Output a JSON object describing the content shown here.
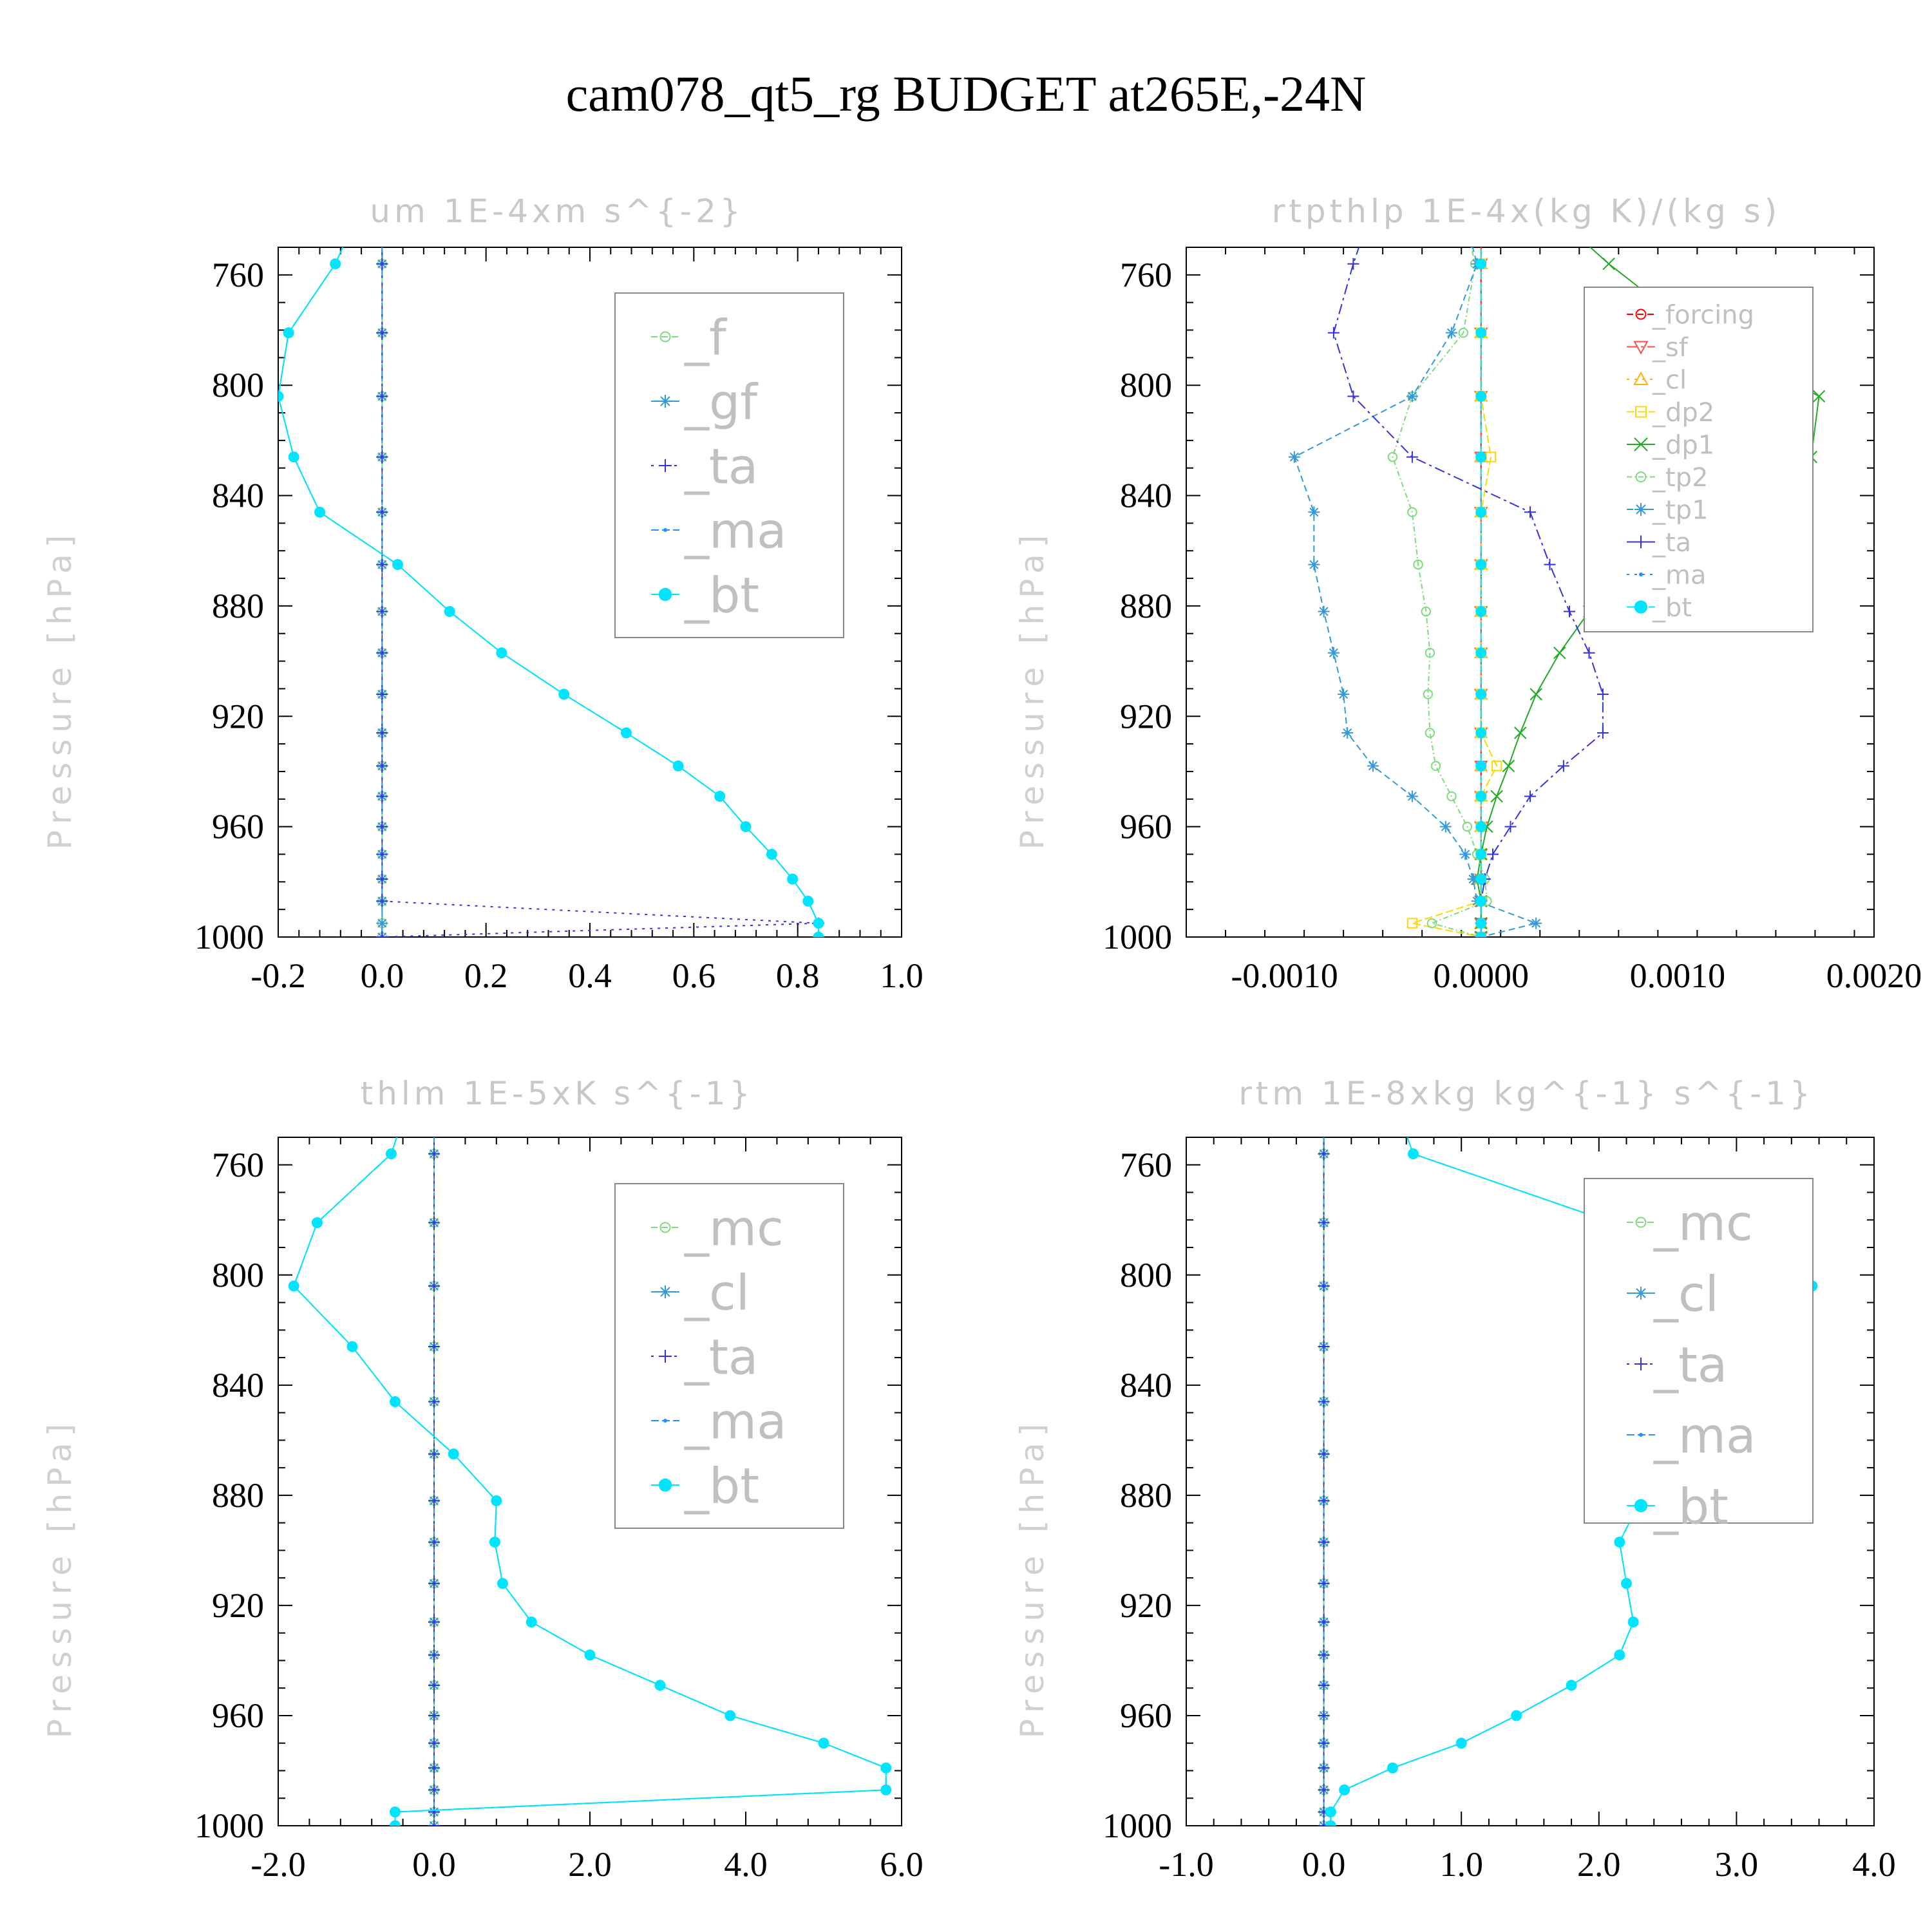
{
  "title": "cam078_qt5_rg  BUDGET at265E,-24N",
  "colors": {
    "forcing": "#ff0000",
    "sf": "#ff4d4d",
    "cl_orange": "#ffb400",
    "dp2": "#ffd700",
    "dp1": "#22aa22",
    "tp2": "#7ddc7d",
    "tp1": "#3399dd",
    "ta": "#3333dd",
    "ma": "#1e90ff",
    "bt": "#00e5ff",
    "f": "#7ddc7d",
    "gf": "#3399dd",
    "mc": "#7ddc7d"
  },
  "chart_data": [
    {
      "type": "line",
      "title": "um   1E-4xm s^{-2}",
      "ylabel": "Pressure [hPa]",
      "xlim": [
        -0.2,
        1.0
      ],
      "ylim": [
        1000,
        750
      ],
      "y_reversed": true,
      "xticks": [
        "-0.2",
        "0.0",
        "0.2",
        "0.4",
        "0.6",
        "0.8",
        "1.0"
      ],
      "yticks": [
        "760",
        "800",
        "840",
        "880",
        "920",
        "960",
        "1000"
      ],
      "legend_position": "top-right",
      "y": [
        735,
        756,
        781,
        804,
        826,
        846,
        865,
        882,
        897,
        912,
        926,
        938,
        949,
        960,
        970,
        979,
        987,
        995,
        1000
      ],
      "series": [
        {
          "name": "_f",
          "color_key": "f",
          "marker": "circle",
          "values": [
            0,
            0,
            0,
            0,
            0,
            0,
            0,
            0,
            0,
            0,
            0,
            0,
            0,
            0,
            0,
            0,
            0,
            0,
            0
          ]
        },
        {
          "name": "_gf",
          "color_key": "gf",
          "marker": "star",
          "values": [
            0,
            0,
            0,
            0,
            0,
            0,
            0,
            0,
            0,
            0,
            0,
            0,
            0,
            0,
            0,
            0,
            0,
            0,
            0
          ]
        },
        {
          "name": "_ta",
          "color_key": "ta",
          "marker": "plus",
          "values": [
            0,
            0,
            0,
            0,
            0,
            0,
            0,
            0,
            0,
            0,
            0,
            0,
            0,
            0,
            0,
            0,
            0,
            0.84,
            0
          ]
        },
        {
          "name": "_ma",
          "color_key": "ma",
          "marker": "dot",
          "values": [
            -0.04,
            -0.09,
            -0.18,
            -0.2,
            -0.17,
            -0.12,
            0.03,
            0.13,
            0.23,
            0.35,
            0.47,
            0.57,
            0.65,
            0.7,
            0.75,
            0.79,
            0.82,
            0.84,
            0.84
          ]
        },
        {
          "name": "_bt",
          "color_key": "bt",
          "marker": "filled-circle",
          "values": [
            -0.04,
            -0.09,
            -0.18,
            -0.2,
            -0.17,
            -0.12,
            0.03,
            0.13,
            0.23,
            0.35,
            0.47,
            0.57,
            0.65,
            0.7,
            0.75,
            0.79,
            0.82,
            0.84,
            0.84
          ]
        }
      ]
    },
    {
      "type": "line",
      "title": "rtpthlp   1E-4x(kg K)/(kg s)",
      "ylabel": "Pressure [hPa]",
      "xlim": [
        -0.0015,
        0.002
      ],
      "ylim": [
        1000,
        750
      ],
      "y_reversed": true,
      "xticks": [
        "-0.0010",
        "0.0000",
        "0.0010",
        "0.0020"
      ],
      "yticks": [
        "760",
        "800",
        "840",
        "880",
        "920",
        "960",
        "1000"
      ],
      "legend_position": "top-right",
      "y": [
        735,
        756,
        781,
        804,
        826,
        846,
        865,
        882,
        897,
        912,
        926,
        938,
        949,
        960,
        970,
        979,
        987,
        995,
        1000
      ],
      "series": [
        {
          "name": "_forcing",
          "color_key": "forcing",
          "marker": "circle",
          "values": [
            0,
            0,
            0,
            0,
            0,
            0,
            0,
            0,
            0,
            0,
            0,
            0,
            0,
            0,
            0,
            0,
            0,
            0,
            0
          ]
        },
        {
          "name": "_sf",
          "color_key": "sf",
          "marker": "triangle-down",
          "values": [
            0,
            0,
            0,
            0,
            0,
            0,
            0,
            0,
            0,
            0,
            0,
            0,
            0,
            0,
            0,
            0,
            0,
            0,
            0
          ]
        },
        {
          "name": "_cl",
          "color_key": "cl_orange",
          "marker": "triangle",
          "values": [
            0,
            0,
            0,
            0,
            0,
            0,
            0,
            0,
            0,
            0,
            0,
            0,
            0,
            0,
            0,
            0,
            0,
            0,
            0
          ]
        },
        {
          "name": "_dp2",
          "color_key": "dp2",
          "marker": "square",
          "values": [
            0,
            0,
            0,
            0,
            5e-05,
            0,
            0,
            0,
            0,
            0,
            0,
            8e-05,
            0,
            0,
            0,
            0,
            0,
            -0.00035,
            0
          ]
        },
        {
          "name": "_dp1",
          "color_key": "dp1",
          "marker": "cross",
          "values": [
            0.00032,
            0.00065,
            0.0011,
            0.00172,
            0.00168,
            0.00115,
            0.0008,
            0.00055,
            0.0004,
            0.00028,
            0.0002,
            0.00014,
            8e-05,
            3e-05,
            0.0,
            -2e-05,
            0.0,
            0.0,
            0.0
          ]
        },
        {
          "name": "_tp2",
          "color_key": "tp2",
          "marker": "circle",
          "values": [
            -0.0001,
            -3e-05,
            -9e-05,
            -0.00035,
            -0.00045,
            -0.00035,
            -0.00032,
            -0.00028,
            -0.00026,
            -0.00027,
            -0.00026,
            -0.00023,
            -0.00015,
            -7e-05,
            -2e-05,
            2e-05,
            3e-05,
            -0.00025,
            0.0
          ]
        },
        {
          "name": "_tp1",
          "color_key": "tp1",
          "marker": "star",
          "values": [
            -0.0001,
            -2e-05,
            -0.00015,
            -0.00035,
            -0.00095,
            -0.00085,
            -0.00085,
            -0.0008,
            -0.00075,
            -0.0007,
            -0.00068,
            -0.00055,
            -0.00035,
            -0.00018,
            -8e-05,
            -4e-05,
            -2e-05,
            0.00028,
            0.0
          ]
        },
        {
          "name": "_ta",
          "color_key": "ta",
          "marker": "plus",
          "values": [
            -0.00055,
            -0.00065,
            -0.00075,
            -0.00065,
            -0.00035,
            0.00025,
            0.00035,
            0.00045,
            0.00055,
            0.00062,
            0.00062,
            0.00042,
            0.00025,
            0.00015,
            6e-05,
            2e-05,
            0.0,
            0.0,
            0.0
          ]
        },
        {
          "name": "_ma",
          "color_key": "ma",
          "marker": "dot",
          "values": [
            0,
            0,
            0,
            0,
            0,
            0,
            0,
            0,
            0,
            0,
            0,
            0,
            0,
            0,
            0,
            0,
            0,
            0,
            0
          ]
        },
        {
          "name": "_bt",
          "color_key": "bt",
          "marker": "filled-circle",
          "values": [
            0,
            0,
            0,
            0,
            0,
            0,
            0,
            0,
            0,
            0,
            0,
            0,
            0,
            0,
            0,
            0,
            0,
            0,
            0
          ]
        }
      ]
    },
    {
      "type": "line",
      "title": "thlm   1E-5xK s^{-1}",
      "ylabel": "Pressure [hPa]",
      "xlim": [
        -2.0,
        6.0
      ],
      "ylim": [
        1000,
        750
      ],
      "y_reversed": true,
      "xticks": [
        "-2.0",
        "0.0",
        "2.0",
        "4.0",
        "6.0"
      ],
      "yticks": [
        "760",
        "800",
        "840",
        "880",
        "920",
        "960",
        "1000"
      ],
      "legend_position": "top-right",
      "y": [
        735,
        756,
        781,
        804,
        826,
        846,
        865,
        882,
        897,
        912,
        926,
        938,
        949,
        960,
        970,
        979,
        987,
        995,
        1000
      ],
      "series": [
        {
          "name": "_mc",
          "color_key": "mc",
          "marker": "circle",
          "values": [
            0,
            0,
            0,
            0,
            0,
            0,
            0,
            0,
            0,
            0,
            0,
            0,
            0,
            0,
            0,
            0,
            0,
            0,
            0
          ]
        },
        {
          "name": "_cl",
          "color_key": "gf",
          "marker": "star",
          "values": [
            0,
            0,
            0,
            0,
            0,
            0,
            0,
            0,
            0,
            0,
            0,
            0,
            0,
            0,
            0,
            0,
            0,
            0,
            0
          ]
        },
        {
          "name": "_ta",
          "color_key": "ta",
          "marker": "plus",
          "values": [
            0,
            0,
            0,
            0,
            0,
            0,
            0,
            0,
            0,
            0,
            0,
            0,
            0,
            0,
            0,
            0,
            0,
            0,
            0
          ]
        },
        {
          "name": "_ma",
          "color_key": "ma",
          "marker": "dot",
          "values": [
            -0.3,
            -0.55,
            -1.5,
            -1.8,
            -1.05,
            -0.5,
            0.25,
            0.8,
            0.78,
            0.88,
            1.25,
            2.0,
            2.9,
            3.8,
            5.0,
            5.8,
            5.8,
            -0.5,
            -0.5
          ]
        },
        {
          "name": "_bt",
          "color_key": "bt",
          "marker": "filled-circle",
          "values": [
            -0.3,
            -0.55,
            -1.5,
            -1.8,
            -1.05,
            -0.5,
            0.25,
            0.8,
            0.78,
            0.88,
            1.25,
            2.0,
            2.9,
            3.8,
            5.0,
            5.8,
            5.8,
            -0.5,
            -0.5
          ]
        }
      ]
    },
    {
      "type": "line",
      "title": "rtm   1E-8xkg kg^{-1} s^{-1}",
      "ylabel": "Pressure [hPa]",
      "xlim": [
        -1.0,
        4.0
      ],
      "ylim": [
        1000,
        750
      ],
      "y_reversed": true,
      "xticks": [
        "-1.0",
        "0.0",
        "1.0",
        "2.0",
        "3.0",
        "4.0"
      ],
      "yticks": [
        "760",
        "800",
        "840",
        "880",
        "920",
        "960",
        "1000"
      ],
      "legend_position": "top-right",
      "y": [
        735,
        756,
        781,
        804,
        826,
        846,
        865,
        882,
        897,
        912,
        926,
        938,
        949,
        960,
        970,
        979,
        987,
        995,
        1000
      ],
      "series": [
        {
          "name": "_mc",
          "color_key": "mc",
          "marker": "circle",
          "values": [
            0,
            0,
            0,
            0,
            0,
            0,
            0,
            0,
            0,
            0,
            0,
            0,
            0,
            0,
            0,
            0,
            0,
            0,
            0
          ]
        },
        {
          "name": "_cl",
          "color_key": "gf",
          "marker": "star",
          "values": [
            0,
            0,
            0,
            0,
            0,
            0,
            0,
            0,
            0,
            0,
            0,
            0,
            0,
            0,
            0,
            0,
            0,
            0,
            0
          ]
        },
        {
          "name": "_ta",
          "color_key": "ta",
          "marker": "plus",
          "values": [
            0,
            0,
            0,
            0,
            0,
            0,
            0,
            0,
            0,
            0,
            0,
            0,
            0,
            0,
            0,
            0,
            0,
            0,
            0
          ]
        },
        {
          "name": "_ma",
          "color_key": "ma",
          "marker": "dot",
          "values": [
            0.5,
            0.65,
            2.1,
            3.55,
            3.25,
            2.8,
            2.45,
            2.3,
            2.15,
            2.2,
            2.25,
            2.15,
            1.8,
            1.4,
            1.0,
            0.5,
            0.15,
            0.05,
            0.05
          ]
        },
        {
          "name": "_bt",
          "color_key": "bt",
          "marker": "filled-circle",
          "values": [
            0.5,
            0.65,
            2.1,
            3.55,
            3.25,
            2.8,
            2.45,
            2.3,
            2.15,
            2.2,
            2.25,
            2.15,
            1.8,
            1.4,
            1.0,
            0.5,
            0.15,
            0.05,
            0.05
          ]
        }
      ]
    }
  ]
}
